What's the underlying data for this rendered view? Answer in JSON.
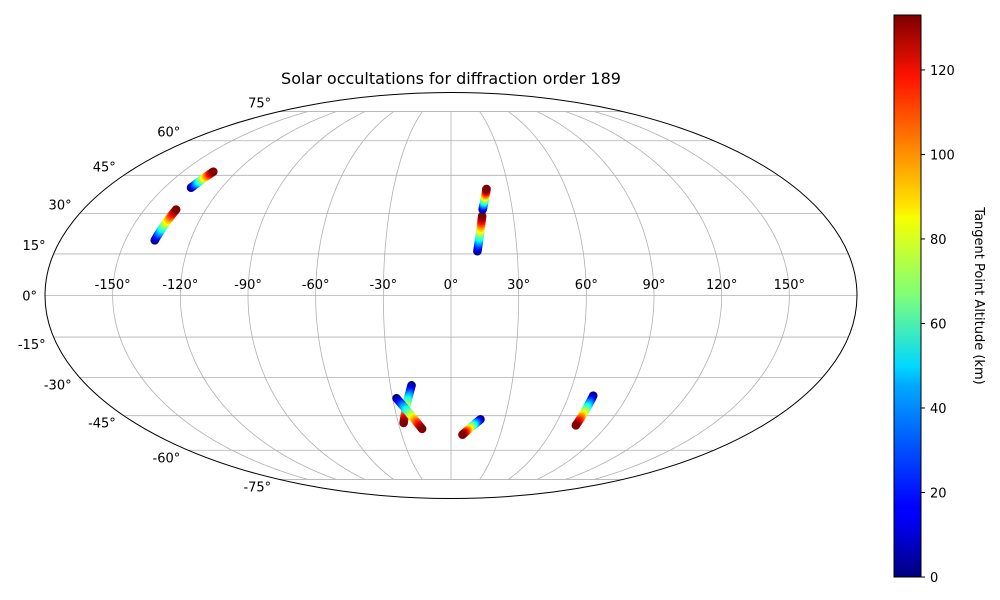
{
  "chart_data": {
    "type": "scatter",
    "projection": "mollweide",
    "title": "Solar occultations for diffraction order 189",
    "grid": true,
    "longitude_ticks": [
      "-150°",
      "-120°",
      "-90°",
      "-60°",
      "-30°",
      "0°",
      "30°",
      "60°",
      "90°",
      "120°",
      "150°"
    ],
    "latitude_ticks": [
      "75°",
      "60°",
      "45°",
      "30°",
      "15°",
      "0°",
      "-15°",
      "-30°",
      "-45°",
      "-60°",
      "-75°"
    ],
    "colorbar": {
      "label": "Tangent Point Altitude (km)",
      "colormap": "jet",
      "range": [
        0,
        133
      ],
      "ticks": [
        "0",
        "20",
        "40",
        "60",
        "80",
        "100",
        "120"
      ]
    },
    "series": [
      {
        "start": {
          "lon": -136,
          "lat": 40
        },
        "end": {
          "lon": -133,
          "lat": 46.5
        },
        "alt_start": 0,
        "alt_end": 133
      },
      {
        "start": {
          "lon": -136.5,
          "lat": 20
        },
        "end": {
          "lon": -134.5,
          "lat": 31.5
        },
        "alt_start": 0,
        "alt_end": 133
      },
      {
        "start": {
          "lon": 12,
          "lat": 16
        },
        "end": {
          "lon": 15,
          "lat": 29
        },
        "alt_start": 0,
        "alt_end": 133
      },
      {
        "start": {
          "lon": 15.5,
          "lat": 31.5
        },
        "end": {
          "lon": 18.5,
          "lat": 39.5
        },
        "alt_start": 0,
        "alt_end": 133
      },
      {
        "start": {
          "lon": -19.5,
          "lat": -33
        },
        "end": {
          "lon": -27,
          "lat": -48
        },
        "alt_start": 0,
        "alt_end": 133
      },
      {
        "start": {
          "lon": -28,
          "lat": -38
        },
        "end": {
          "lon": -17,
          "lat": -50.5
        },
        "alt_start": 0,
        "alt_end": 133
      },
      {
        "start": {
          "lon": 16.5,
          "lat": -46.5
        },
        "end": {
          "lon": 7,
          "lat": -53
        },
        "alt_start": 0,
        "alt_end": 133
      },
      {
        "start": {
          "lon": 72.5,
          "lat": -37
        },
        "end": {
          "lon": 72,
          "lat": -49
        },
        "alt_start": 0,
        "alt_end": 133
      }
    ]
  }
}
